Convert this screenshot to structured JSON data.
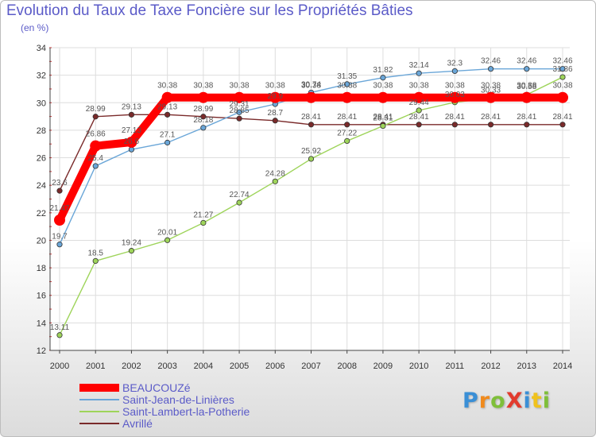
{
  "title": "Evolution du Taux de Taxe Foncière sur les Propriétés Bâties",
  "unit_label": "(en %)",
  "logo": {
    "text": "Proxiti",
    "letters": [
      {
        "ch": "P",
        "color": "#3a8fd6"
      },
      {
        "ch": "r",
        "color": "#f08a1c"
      },
      {
        "ch": "o",
        "color": "#7fbf3a"
      },
      {
        "ch": "X",
        "color": "#e23b2e"
      },
      {
        "ch": "i",
        "color": "#3a8fd6"
      },
      {
        "ch": "t",
        "color": "#f0c21c"
      },
      {
        "ch": "i",
        "color": "#7fbf3a"
      }
    ]
  },
  "chart_data": {
    "type": "line",
    "title": "Evolution du Taux de Taxe Foncière sur les Propriétés Bâties",
    "ylabel": "(en %)",
    "xlabel": "",
    "ylim": [
      12,
      34
    ],
    "yticks": [
      12,
      14,
      16,
      18,
      20,
      22,
      24,
      26,
      28,
      30,
      32,
      34
    ],
    "grid": true,
    "legend_position": "bottom-left",
    "x": [
      "2000",
      "2001",
      "2002",
      "2003",
      "2004",
      "2005",
      "2006",
      "2007",
      "2008",
      "2009",
      "2010",
      "2011",
      "2012",
      "2013",
      "2014"
    ],
    "series": [
      {
        "name": "BEAUCOUZé",
        "color": "#ff0000",
        "values": [
          21.47,
          26.86,
          27.13,
          30.38,
          30.38,
          30.38,
          30.38,
          30.38,
          30.38,
          30.38,
          30.38,
          30.38,
          30.38,
          30.38,
          30.38
        ],
        "labels": [
          "21.47",
          "26.86",
          "27.13",
          "30.38",
          "30.38",
          "30.38",
          "30.38",
          "30.38",
          "30.38",
          "30.38",
          "30.38",
          "30.38",
          "30.38",
          "30.38",
          "30.38"
        ]
      },
      {
        "name": "Saint-Jean-de-Linières",
        "color": "#6aa6d8",
        "values": [
          19.7,
          25.4,
          26.6,
          27.1,
          28.18,
          29.31,
          29.9,
          30.74,
          31.35,
          31.82,
          32.14,
          32.3,
          32.46,
          32.46,
          32.46
        ],
        "labels": [
          "19.7",
          "25.4",
          "26.6",
          "27.1",
          "28.18",
          "29.31",
          "29.9",
          "30.74",
          "31.35",
          "31.82",
          "32.14",
          "32.3",
          "32.46",
          "32.46",
          "32.46"
        ]
      },
      {
        "name": "Saint-Lambert-la-Potherie",
        "color": "#9ed45a",
        "values": [
          13.11,
          18.5,
          19.24,
          20.01,
          21.27,
          22.74,
          24.28,
          25.92,
          27.22,
          28.31,
          29.44,
          30.03,
          30.33,
          30.58,
          31.86
        ],
        "labels": [
          "13.11",
          "18.5",
          "19.24",
          "20.01",
          "21.27",
          "22.74",
          "24.28",
          "25.92",
          "27.22",
          "28.31",
          "29.44",
          "30.03",
          "30.33",
          "30.58",
          "31.86"
        ]
      },
      {
        "name": "Avrillé",
        "color": "#7a2a2a",
        "values": [
          23.6,
          28.99,
          29.13,
          29.13,
          28.99,
          28.85,
          28.7,
          28.41,
          28.41,
          28.41,
          28.41,
          28.41,
          28.41,
          28.41,
          28.41
        ],
        "labels": [
          "23.6",
          "28.99",
          "29.13",
          "29.13",
          "28.99",
          "28.85",
          "28.7",
          "28.41",
          "28.41",
          "28.41",
          "28.41",
          "28.41",
          "28.41",
          "28.41",
          "28.41"
        ]
      }
    ]
  }
}
